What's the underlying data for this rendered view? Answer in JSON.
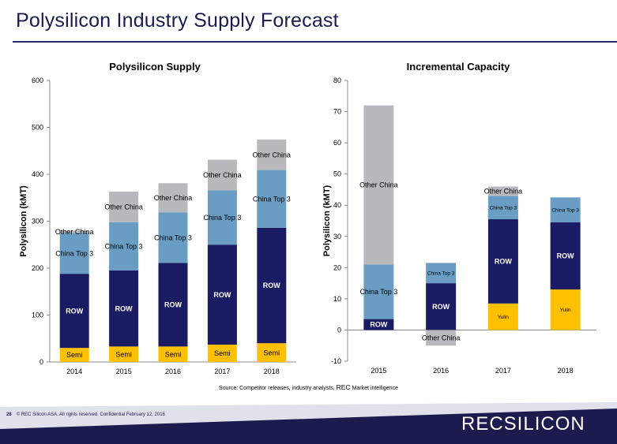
{
  "page": {
    "title": "Polysilicon Industry Supply Forecast",
    "source_prefix": "Source: Competitor releases, industry analysts, ",
    "source_rec": "REC",
    "source_suffix": " Market intelligence",
    "page_number": "28",
    "footer_text": "© REC Silicon ASA. All rights reserved. Confidential  February 12, 2016",
    "logo_text": "RECSILICON",
    "colors": {
      "title": "#1b1b4e",
      "semi": "#ffc000",
      "yulin": "#ffc000",
      "row": "#1b1b63",
      "china_top3": "#6a9dc4",
      "other_china": "#b7b9bd",
      "footer_band": "#1b1b4e",
      "footer_light": "#dfe2ea"
    }
  },
  "chart_data": [
    {
      "type": "bar",
      "stacked": true,
      "title": "Polysilicon Supply",
      "ylabel": "Polysilicon (kMT)",
      "xlabel": "",
      "ylim": [
        0,
        600
      ],
      "yticks": [
        0,
        100,
        200,
        300,
        400,
        500,
        600
      ],
      "grid": false,
      "categories": [
        "2014",
        "2015",
        "2016",
        "2017",
        "2018"
      ],
      "series": [
        {
          "name": "Semi",
          "color": "#ffc000",
          "text_color": "#000000",
          "values": [
            30,
            33,
            33,
            37,
            40
          ],
          "labels": [
            "Semi",
            "Semi",
            "Semi",
            "Semi",
            "Semi"
          ]
        },
        {
          "name": "ROW",
          "color": "#1b1b63",
          "text_color": "#ffffff",
          "bold": true,
          "values": [
            158,
            162,
            178,
            213,
            246
          ],
          "labels": [
            "ROW",
            "ROW",
            "ROW",
            "ROW",
            "ROW"
          ]
        },
        {
          "name": "China Top 3",
          "color": "#6a9dc4",
          "text_color": "#000000",
          "values": [
            87,
            103,
            108,
            116,
            123
          ],
          "labels": [
            "China Top 3",
            "China Top 3",
            "China Top 3",
            "China Top 3",
            "China Top 3"
          ]
        },
        {
          "name": "Other China",
          "color": "#b7b9bd",
          "text_color": "#000000",
          "values": [
            5,
            65,
            62,
            65,
            65
          ],
          "labels": [
            "Other China",
            "Other China",
            "Other China",
            "Other China",
            "Other China"
          ]
        }
      ]
    },
    {
      "type": "bar",
      "stacked": true,
      "title": "Incremental Capacity",
      "ylabel": "Polysilicon (kMT)",
      "xlabel": "",
      "ylim": [
        -10,
        80
      ],
      "yticks": [
        -10,
        0,
        10,
        20,
        30,
        40,
        50,
        60,
        70,
        80
      ],
      "grid": false,
      "categories": [
        "2015",
        "2016",
        "2017",
        "2018"
      ],
      "series": [
        {
          "name": "Yulin",
          "color": "#ffc000",
          "text_color": "#000000",
          "values": [
            0,
            0,
            8.5,
            13
          ],
          "labels": [
            "",
            "",
            "Yulin",
            "Yulin"
          ]
        },
        {
          "name": "ROW",
          "color": "#1b1b63",
          "text_color": "#ffffff",
          "bold": true,
          "values": [
            3.5,
            15,
            27,
            21.5
          ],
          "labels": [
            "ROW",
            "ROW",
            "ROW",
            "ROW"
          ]
        },
        {
          "name": "China Top 3",
          "color": "#6a9dc4",
          "text_color": "#000000",
          "values": [
            17.5,
            6.5,
            7.5,
            8
          ],
          "labels": [
            "China Top 3",
            "China Top 3",
            "China Top 3",
            "China Top 3"
          ]
        },
        {
          "name": "Other China",
          "color": "#b7b9bd",
          "text_color": "#000000",
          "values": [
            51,
            -5,
            3,
            0
          ],
          "labels": [
            "Other China",
            "Other China",
            "Other China",
            ""
          ]
        }
      ]
    }
  ]
}
